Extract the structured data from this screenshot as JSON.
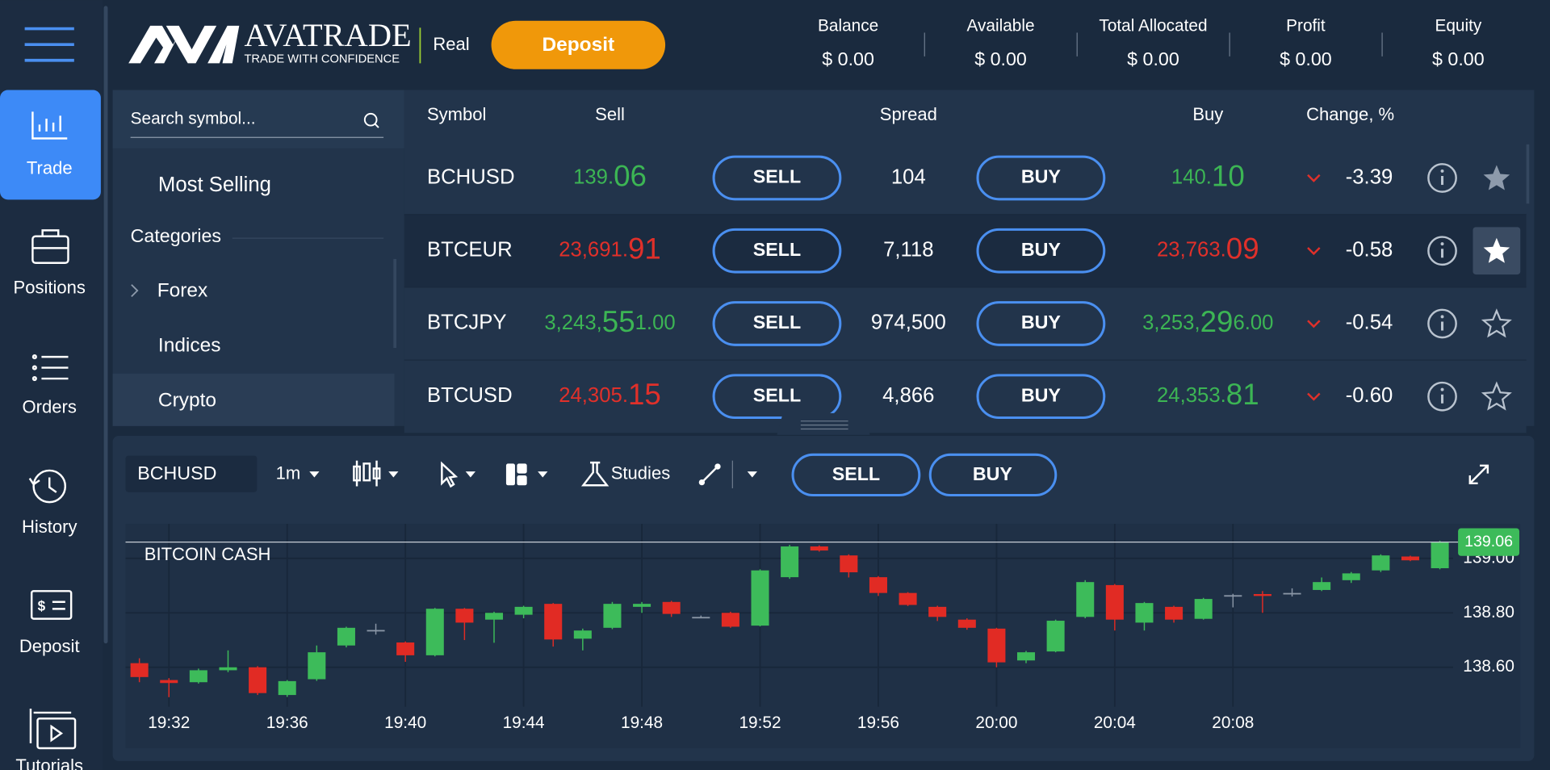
{
  "sidebar": {
    "items": [
      "Trade",
      "Positions",
      "Orders",
      "History",
      "Deposit",
      "Tutorials"
    ]
  },
  "header": {
    "brand": "AVATRADE",
    "tagline": "TRADE WITH CONFIDENCE",
    "account_type": "Real",
    "deposit_button": "Deposit",
    "stats": [
      {
        "label": "Balance",
        "value": "$ 0.00"
      },
      {
        "label": "Available",
        "value": "$ 0.00"
      },
      {
        "label": "Total Allocated",
        "value": "$ 0.00"
      },
      {
        "label": "Profit",
        "value": "$ 0.00"
      },
      {
        "label": "Equity",
        "value": "$ 0.00"
      }
    ]
  },
  "watchlist": {
    "search_placeholder": "Search symbol...",
    "most_selling": "Most Selling",
    "categories_label": "Categories",
    "categories": [
      "Forex",
      "Indices",
      "Crypto"
    ]
  },
  "table": {
    "headers": [
      "Symbol",
      "Sell",
      "Spread",
      "Buy",
      "Change, %"
    ],
    "sell_button": "SELL",
    "buy_button": "BUY",
    "rows": [
      {
        "symbol": "BCHUSD",
        "sell": [
          "139.",
          "06"
        ],
        "sell_color": "#3cb554",
        "spread": "104",
        "buy": [
          "140.",
          "10"
        ],
        "buy_color": "#3cb554",
        "change": "-3.39",
        "starred": true,
        "selected": false
      },
      {
        "symbol": "BTCEUR",
        "sell": [
          "23,691.",
          "91"
        ],
        "sell_color": "#e0302a",
        "spread": "7,118",
        "buy": [
          "23,763.",
          "09"
        ],
        "buy_color": "#e0302a",
        "change": "-0.58",
        "starred": true,
        "selected": true
      },
      {
        "symbol": "BTCJPY",
        "sell": [
          "3,243,",
          "55",
          "1.00"
        ],
        "sell_color": "#3cb554",
        "spread": "974,500",
        "buy": [
          "3,253,",
          "29",
          "6.00"
        ],
        "buy_color": "#3cb554",
        "change": "-0.54",
        "starred": false,
        "selected": false
      },
      {
        "symbol": "BTCUSD",
        "sell": [
          "24,305.",
          "15"
        ],
        "sell_color": "#e0302a",
        "spread": "4,866",
        "buy": [
          "24,353.",
          "81"
        ],
        "buy_color": "#3cb554",
        "change": "-0.60",
        "starred": false,
        "selected": false
      }
    ]
  },
  "toolbar": {
    "symbol": "BCHUSD",
    "timeframe": "1m",
    "studies": "Studies",
    "sell_button": "SELL",
    "buy_button": "BUY"
  },
  "chart_data": {
    "type": "candlestick",
    "title": "BITCOIN CASH",
    "categories": [
      null,
      "19:32",
      null,
      null,
      null,
      "19:36",
      null,
      null,
      null,
      "19:40",
      null,
      null,
      null,
      "19:44",
      null,
      null,
      null,
      "19:48",
      null,
      null,
      null,
      "19:52",
      null,
      null,
      null,
      "19:56",
      null,
      null,
      null,
      "20:00",
      null,
      null,
      null,
      "20:04",
      null,
      null,
      null,
      "20:08",
      null,
      null,
      null,
      null,
      null,
      null,
      null
    ],
    "open": [
      138.615,
      138.553,
      138.545,
      138.589,
      138.6,
      138.498,
      138.556,
      138.68,
      138.737,
      138.691,
      138.644,
      138.815,
      138.775,
      138.793,
      138.833,
      138.705,
      138.745,
      138.822,
      138.84,
      138.785,
      138.8,
      138.753,
      138.931,
      139.044,
      139.011,
      138.931,
      138.873,
      138.822,
      138.775,
      138.742,
      138.625,
      138.658,
      138.785,
      138.902,
      138.764,
      138.822,
      138.778,
      138.865,
      138.869,
      138.873,
      138.884,
      138.92,
      138.956,
      139.007,
      138.964
    ],
    "high": [
      138.633,
      138.56,
      138.595,
      138.662,
      138.604,
      138.553,
      138.68,
      138.749,
      138.76,
      138.695,
      138.818,
      138.818,
      138.804,
      138.826,
      138.836,
      138.742,
      138.84,
      138.84,
      138.844,
      138.79,
      138.804,
      138.96,
      139.05,
      139.048,
      139.015,
      138.935,
      138.876,
      138.826,
      138.78,
      138.745,
      138.66,
      138.775,
      138.92,
      138.906,
      138.84,
      138.826,
      138.855,
      138.87,
      138.88,
      138.89,
      138.93,
      138.95,
      139.015,
      139.01,
      139.065
    ],
    "low": [
      138.545,
      138.49,
      138.54,
      138.582,
      138.498,
      138.491,
      138.55,
      138.673,
      138.72,
      138.62,
      138.64,
      138.7,
      138.69,
      138.78,
      138.676,
      138.662,
      138.74,
      138.8,
      138.785,
      138.78,
      138.745,
      138.75,
      138.925,
      139.025,
      138.93,
      138.862,
      138.825,
      138.77,
      138.738,
      138.6,
      138.615,
      138.655,
      138.78,
      138.735,
      138.735,
      138.764,
      138.775,
      138.82,
      138.8,
      138.86,
      138.88,
      138.91,
      138.95,
      138.99,
      138.96
    ],
    "close": [
      138.564,
      138.542,
      138.589,
      138.6,
      138.505,
      138.549,
      138.655,
      138.745,
      138.737,
      138.644,
      138.815,
      138.764,
      138.8,
      138.822,
      138.702,
      138.735,
      138.833,
      138.833,
      138.796,
      138.785,
      138.749,
      138.956,
      139.044,
      139.029,
      138.949,
      138.873,
      138.829,
      138.785,
      138.745,
      138.618,
      138.655,
      138.771,
      138.913,
      138.775,
      138.836,
      138.775,
      138.851,
      138.865,
      138.862,
      138.873,
      138.913,
      138.945,
      139.011,
      138.993,
      139.06
    ],
    "up_color": "#3dbb5a",
    "down_color": "#e12b24",
    "flat_color": "#8a96a6",
    "ylim": [
      138.455,
      139.127
    ],
    "yticks": [
      {
        "value": 138.6,
        "label": "138.60"
      },
      {
        "value": 138.8,
        "label": "138.80"
      },
      {
        "value": 139.0,
        "label": "139.00"
      }
    ],
    "last_price": 139.06,
    "grid": true
  }
}
